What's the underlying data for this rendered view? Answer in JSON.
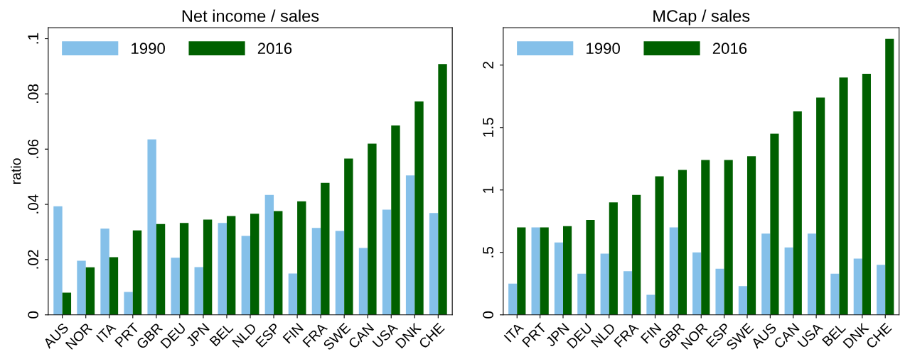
{
  "chart_data": [
    {
      "type": "bar",
      "title": "Net income / sales",
      "ylabel": "ratio",
      "categories": [
        "AUS",
        "NOR",
        "ITA",
        "PRT",
        "GBR",
        "DEU",
        "JPN",
        "BEL",
        "NLD",
        "ESP",
        "FIN",
        "FRA",
        "SWE",
        "CAN",
        "USA",
        "DNK",
        "CHE"
      ],
      "series": [
        {
          "name": "1990",
          "color": "#85c0e9",
          "values": [
            0.0393,
            0.0196,
            0.0312,
            0.0083,
            0.0635,
            0.0207,
            0.0173,
            0.0333,
            0.0286,
            0.0434,
            0.015,
            0.0315,
            0.0304,
            0.0242,
            0.0381,
            0.0505,
            0.0369
          ]
        },
        {
          "name": "2016",
          "color": "#006000",
          "values": [
            0.008,
            0.0172,
            0.0209,
            0.0306,
            0.0329,
            0.0333,
            0.0345,
            0.0358,
            0.0366,
            0.0376,
            0.0411,
            0.0478,
            0.0566,
            0.062,
            0.0686,
            0.0773,
            0.0908
          ]
        }
      ],
      "ylim": [
        0,
        0.104
      ],
      "yticks": [
        {
          "value": 0,
          "label": "0"
        },
        {
          "value": 0.02,
          "label": ".02"
        },
        {
          "value": 0.04,
          "label": ".04"
        },
        {
          "value": 0.06,
          "label": ".06"
        },
        {
          "value": 0.08,
          "label": ".08"
        },
        {
          "value": 0.1,
          "label": ".1"
        }
      ],
      "grid": false,
      "legend": "top left"
    },
    {
      "type": "bar",
      "title": "MCap / sales",
      "categories": [
        "ITA",
        "PRT",
        "JPN",
        "DEU",
        "NLD",
        "FRA",
        "FIN",
        "GBR",
        "NOR",
        "ESP",
        "SWE",
        "AUS",
        "CAN",
        "USA",
        "BEL",
        "DNK",
        "CHE"
      ],
      "series": [
        {
          "name": "1990",
          "color": "#85c0e9",
          "values": [
            0.25,
            0.7,
            0.58,
            0.33,
            0.49,
            0.35,
            0.16,
            0.7,
            0.5,
            0.37,
            0.23,
            0.65,
            0.54,
            0.65,
            0.33,
            0.45,
            0.4
          ]
        },
        {
          "name": "2016",
          "color": "#006000",
          "values": [
            0.7,
            0.7,
            0.71,
            0.76,
            0.9,
            0.96,
            1.11,
            1.16,
            1.24,
            1.24,
            1.27,
            1.45,
            1.63,
            1.74,
            1.9,
            1.93,
            2.21
          ]
        }
      ],
      "ylim": [
        0,
        2.3
      ],
      "yticks": [
        {
          "value": 0,
          "label": "0"
        },
        {
          "value": 0.5,
          "label": ".5"
        },
        {
          "value": 1,
          "label": "1"
        },
        {
          "value": 1.5,
          "label": "1.5"
        },
        {
          "value": 2,
          "label": "2"
        }
      ],
      "grid": false,
      "legend": "top left"
    }
  ]
}
